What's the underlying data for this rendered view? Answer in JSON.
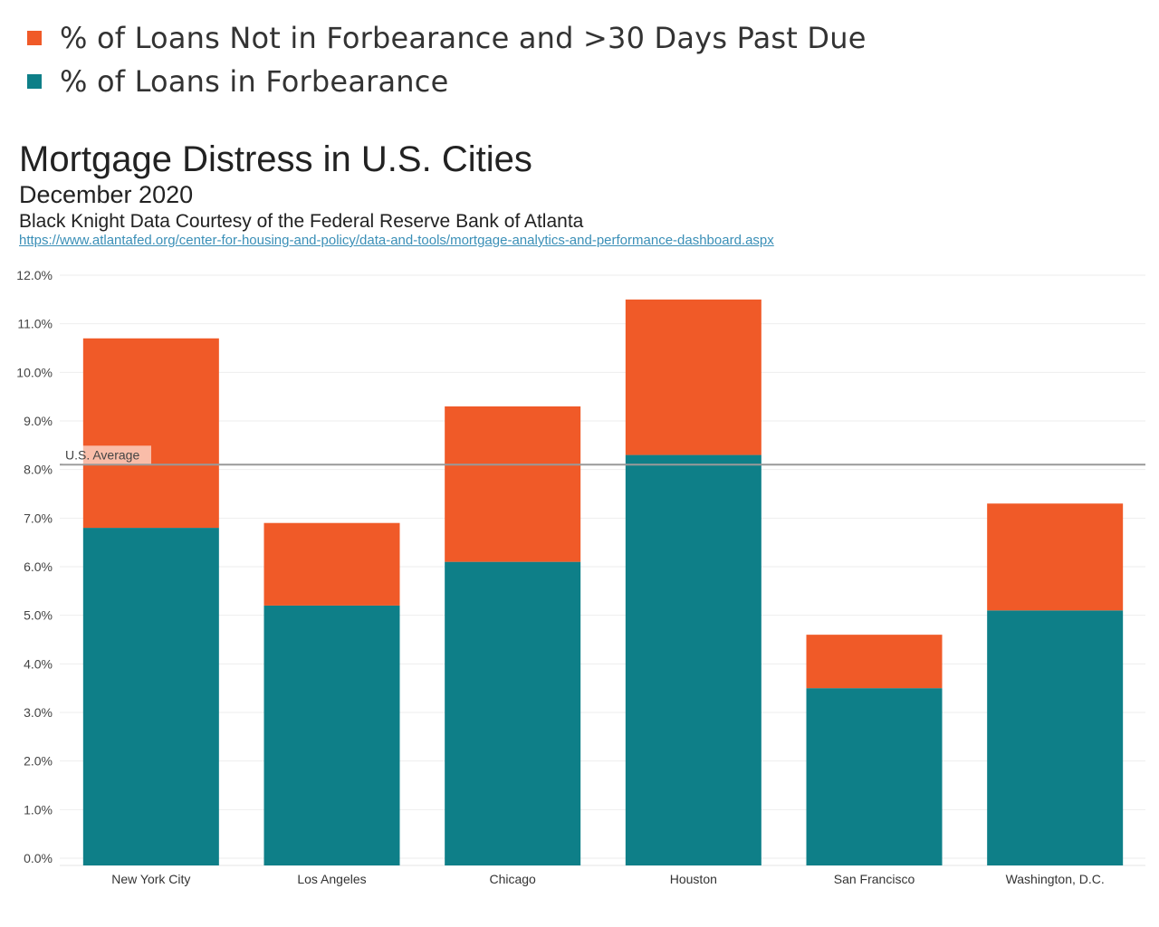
{
  "colors": {
    "past_due": "#f05a28",
    "forbearance": "#0e7f88",
    "reference_line": "#999999",
    "grid": "#eeeeee"
  },
  "chart_data": {
    "type": "bar",
    "stacked": true,
    "title": "Mortgage Distress in U.S. Cities",
    "subtitle": "December 2020",
    "source": "Black Knight Data Courtesy of the Federal Reserve Bank of Atlanta",
    "link": "https://www.atlantafed.org/center-for-housing-and-policy/data-and-tools/mortgage-analytics-and-performance-dashboard.aspx",
    "categories": [
      "New York City",
      "Los Angeles",
      "Chicago",
      "Houston",
      "San Francisco",
      "Washington, D.C."
    ],
    "series": [
      {
        "name": "% of Loans in Forbearance",
        "color": "#0e7f88",
        "values": [
          6.8,
          5.2,
          6.1,
          8.3,
          3.5,
          5.1
        ]
      },
      {
        "name": "% of Loans Not in Forbearance and >30 Days Past Due",
        "color": "#f05a28",
        "values": [
          3.9,
          1.7,
          3.2,
          3.2,
          1.1,
          2.2
        ]
      }
    ],
    "legend_order": [
      {
        "name": "% of Loans Not in Forbearance and >30 Days Past Due",
        "color": "#f05a28"
      },
      {
        "name": "% of Loans in Forbearance",
        "color": "#0e7f88"
      }
    ],
    "legend_position": "top-left",
    "ylim": [
      0,
      12
    ],
    "yticks": [
      0,
      1,
      2,
      3,
      4,
      5,
      6,
      7,
      8,
      9,
      10,
      11,
      12
    ],
    "ytick_labels": [
      "0.0%",
      "1.0%",
      "2.0%",
      "3.0%",
      "4.0%",
      "5.0%",
      "6.0%",
      "7.0%",
      "8.0%",
      "9.0%",
      "10.0%",
      "11.0%",
      "12.0%"
    ],
    "reference_line": {
      "label": "U.S. Average",
      "value": 8.1
    },
    "grid": true
  }
}
